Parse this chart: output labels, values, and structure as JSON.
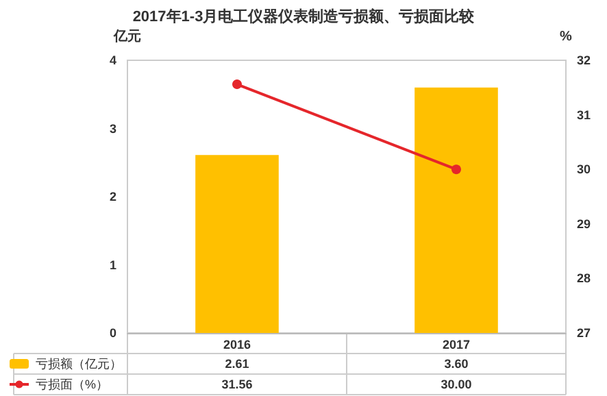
{
  "chart_data": {
    "type": "bar",
    "title": "2017年1-3月电工仪器仪表制造亏损额、亏损面比较",
    "ylabel": "亿元",
    "y2label": "%",
    "categories": [
      "2016",
      "2017"
    ],
    "series": [
      {
        "name": "亏损额（亿元）",
        "color": "#ffc000",
        "values": [
          2.61,
          3.6
        ],
        "value_labels": [
          "2.61",
          "3.60"
        ]
      },
      {
        "name": "亏损面（%）",
        "type": "line",
        "axis": "y2",
        "color": "#e5262b",
        "values": [
          31.56,
          30.0
        ],
        "value_labels": [
          "31.56",
          "30.00"
        ]
      }
    ],
    "ylim": [
      0,
      4
    ],
    "yticks": [
      0,
      1,
      2,
      3,
      4
    ],
    "y2lim": [
      27,
      32
    ],
    "y2ticks": [
      27,
      28,
      29,
      30,
      31,
      32
    ],
    "marker": "circle",
    "legend": "bottom left",
    "grid": false
  }
}
